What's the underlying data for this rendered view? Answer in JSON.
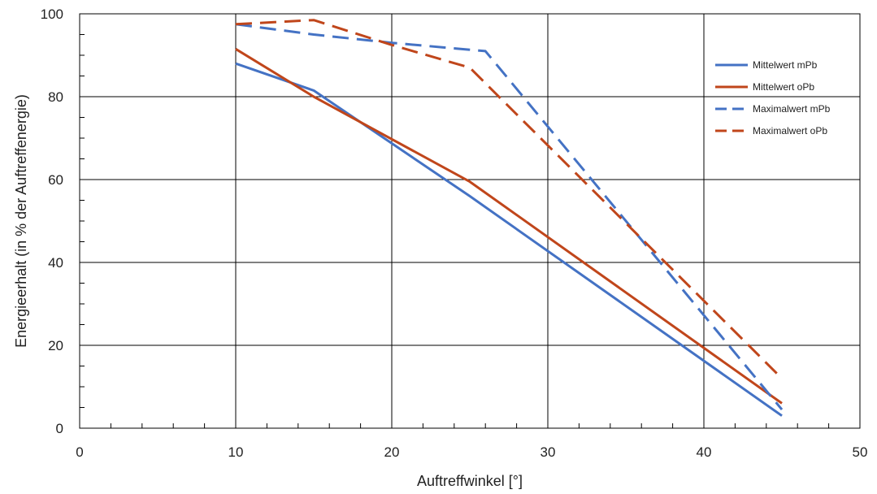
{
  "chart_data": {
    "type": "line",
    "title": "",
    "xlabel": "Auftreffwinkel  [°]",
    "ylabel": "Energieerhalt  (in % der Auftreffenergie)",
    "xlim": [
      0,
      50
    ],
    "ylim": [
      0,
      100
    ],
    "x_ticks": [
      "0",
      "10",
      "20",
      "30",
      "40",
      "50"
    ],
    "y_ticks": [
      "0",
      "20",
      "40",
      "60",
      "80",
      "100"
    ],
    "grid": true,
    "legend_position": "right",
    "series": [
      {
        "name": "Mittelwert mPb",
        "color": "#4472c4",
        "dash": "solid",
        "x": [
          10,
          15,
          25,
          45
        ],
        "y": [
          88,
          81.5,
          56,
          3
        ]
      },
      {
        "name": "Mittelwert oPb",
        "color": "#c0461b",
        "dash": "solid",
        "x": [
          10,
          15,
          25,
          45
        ],
        "y": [
          91.5,
          80,
          59.5,
          6
        ]
      },
      {
        "name": "Maximalwert mPb",
        "color": "#4472c4",
        "dash": "dashed",
        "x": [
          10,
          15,
          20,
          26,
          45
        ],
        "y": [
          97.5,
          95,
          93,
          91,
          4.5
        ]
      },
      {
        "name": "Maximalwert oPb",
        "color": "#c0461b",
        "dash": "dashed",
        "x": [
          10,
          15,
          20,
          25,
          45
        ],
        "y": [
          97.5,
          98.5,
          92.5,
          87,
          12
        ]
      }
    ]
  }
}
